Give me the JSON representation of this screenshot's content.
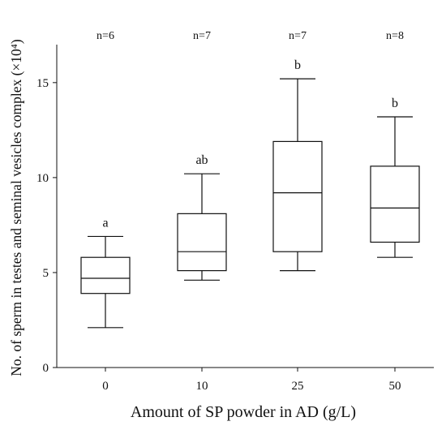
{
  "chart_data": {
    "type": "box",
    "xlabel": "Amount of SP powder in AD (g/L)",
    "ylabel": "No. of sperm in testes and seminal vesicles complex (×10⁴)",
    "ylim": [
      0,
      17
    ],
    "yticks": [
      0,
      5,
      10,
      15
    ],
    "categories": [
      "0",
      "10",
      "25",
      "50"
    ],
    "n_labels": [
      "n=6",
      "n=7",
      "n=7",
      "n=8"
    ],
    "group_letters": [
      "a",
      "ab",
      "b",
      "b"
    ],
    "boxes": [
      {
        "min": 2.1,
        "q1": 3.9,
        "median": 4.7,
        "q3": 5.8,
        "max": 6.9
      },
      {
        "min": 4.6,
        "q1": 5.1,
        "median": 6.1,
        "q3": 8.1,
        "max": 10.2
      },
      {
        "min": 5.1,
        "q1": 6.1,
        "median": 9.2,
        "q3": 11.9,
        "max": 15.2
      },
      {
        "min": 5.8,
        "q1": 6.6,
        "median": 8.4,
        "q3": 10.6,
        "max": 13.2
      }
    ],
    "colors": {
      "line": "#111111",
      "box_fill": "#ffffff"
    }
  }
}
